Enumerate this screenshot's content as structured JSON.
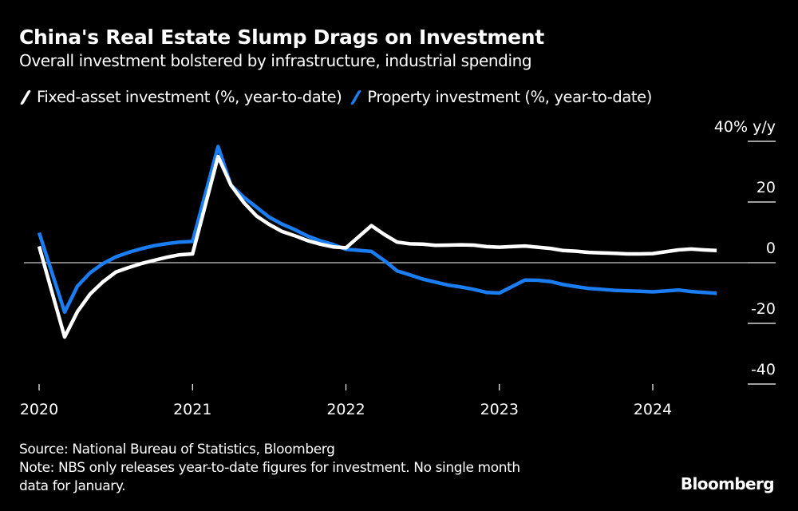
{
  "title": "China's Real Estate Slump Drags on Investment",
  "subtitle": "Overall investment bolstered by infrastructure, industrial spending",
  "colors": {
    "background": "#000000",
    "fixed_asset": "#ffffff",
    "property": "#1a7df2",
    "zero_line": "#aaaaaa"
  },
  "chart_data": {
    "type": "line",
    "title": "China's Real Estate Slump Drags on Investment",
    "ylabel": "% y/y",
    "ylim": [
      -40,
      40
    ],
    "y_ticks": [
      40,
      20,
      0,
      -20,
      -40
    ],
    "y_tick_labels": [
      "40% y/y",
      "20",
      "0",
      "-20",
      "-40"
    ],
    "x_ticks": [
      "2020",
      "2021",
      "2022",
      "2023",
      "2024"
    ],
    "legend_position": "top-left",
    "grid": false,
    "x": [
      "2019-12",
      "2020-02",
      "2020-03",
      "2020-04",
      "2020-05",
      "2020-06",
      "2020-07",
      "2020-08",
      "2020-09",
      "2020-10",
      "2020-11",
      "2020-12",
      "2021-02",
      "2021-03",
      "2021-04",
      "2021-05",
      "2021-06",
      "2021-07",
      "2021-08",
      "2021-09",
      "2021-10",
      "2021-11",
      "2021-12",
      "2022-02",
      "2022-03",
      "2022-04",
      "2022-05",
      "2022-06",
      "2022-07",
      "2022-08",
      "2022-09",
      "2022-10",
      "2022-11",
      "2022-12",
      "2023-02",
      "2023-03",
      "2023-04",
      "2023-05",
      "2023-06",
      "2023-07",
      "2023-08",
      "2023-09",
      "2023-10",
      "2023-11",
      "2023-12",
      "2024-02",
      "2024-03",
      "2024-04",
      "2024-05"
    ],
    "series": [
      {
        "name": "Fixed-asset investment (%, year-to-date)",
        "color": "#ffffff",
        "values": [
          5.4,
          -24.5,
          -16.1,
          -10.3,
          -6.3,
          -3.1,
          -1.6,
          -0.3,
          0.8,
          1.8,
          2.6,
          2.9,
          35.0,
          25.6,
          19.9,
          15.4,
          12.6,
          10.3,
          8.9,
          7.3,
          6.1,
          5.2,
          4.9,
          12.2,
          9.3,
          6.8,
          6.2,
          6.1,
          5.7,
          5.8,
          5.9,
          5.8,
          5.3,
          5.1,
          5.5,
          5.1,
          4.7,
          4.0,
          3.8,
          3.4,
          3.2,
          3.1,
          2.9,
          2.9,
          3.0,
          4.2,
          4.5,
          4.2,
          4.0
        ]
      },
      {
        "name": "Property investment (%, year-to-date)",
        "color": "#1a7df2",
        "values": [
          9.9,
          -16.3,
          -7.7,
          -3.3,
          -0.3,
          1.9,
          3.4,
          4.6,
          5.6,
          6.3,
          6.8,
          7.0,
          38.3,
          25.6,
          21.6,
          18.3,
          15.0,
          12.7,
          10.9,
          8.8,
          7.2,
          6.0,
          4.4,
          3.7,
          0.7,
          -2.7,
          -4.0,
          -5.4,
          -6.4,
          -7.4,
          -8.0,
          -8.8,
          -9.8,
          -10.0,
          -5.7,
          -5.8,
          -6.2,
          -7.2,
          -7.9,
          -8.5,
          -8.8,
          -9.1,
          -9.3,
          -9.4,
          -9.6,
          -9.0,
          -9.5,
          -9.8,
          -10.1
        ]
      }
    ]
  },
  "footer": {
    "source": "Source: National Bureau of Statistics, Bloomberg",
    "note_line1": "Note: NBS only releases year-to-date figures for investment. No single month",
    "note_line2": "data for January."
  },
  "logo": "Bloomberg"
}
